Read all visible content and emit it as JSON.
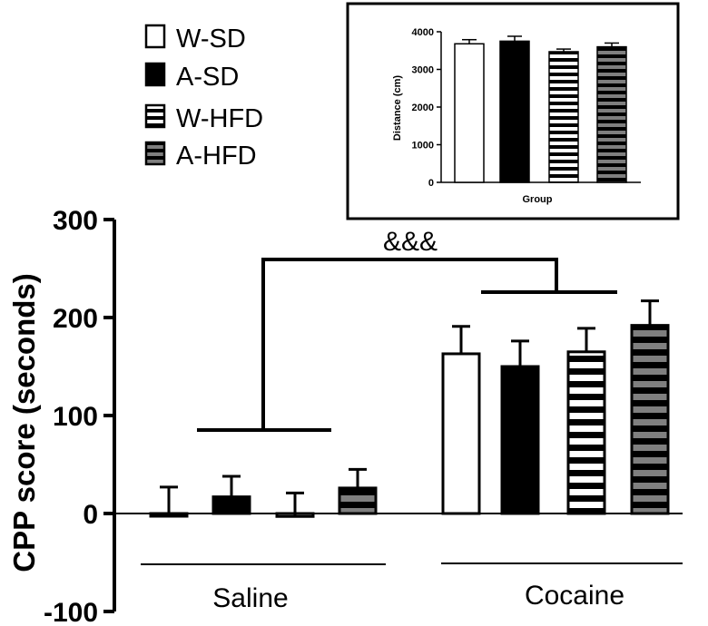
{
  "chart_data": [
    {
      "type": "bar",
      "ylabel": "CPP score (seconds)",
      "ylim": [
        -100,
        300
      ],
      "yticks": [
        "300",
        "200",
        "100",
        "0",
        "-100"
      ],
      "groups": [
        "Saline",
        "Cocaine"
      ],
      "significance_marker": "&&&",
      "series": [
        {
          "name": "W-SD",
          "values": [
            -1,
            163
          ],
          "errors": [
            28,
            28
          ],
          "pattern": "open"
        },
        {
          "name": "A-SD",
          "values": [
            17,
            150
          ],
          "errors": [
            21,
            26
          ],
          "pattern": "solid"
        },
        {
          "name": "W-HFD",
          "values": [
            -3,
            165
          ],
          "errors": [
            24,
            24
          ],
          "pattern": "white-stripes"
        },
        {
          "name": "A-HFD",
          "values": [
            26,
            192
          ],
          "errors": [
            19,
            25
          ],
          "pattern": "gray-stripes"
        }
      ],
      "legend_position": "top-left"
    },
    {
      "type": "bar",
      "title": "",
      "xlabel": "Group",
      "ylabel": "Distance (cm)",
      "ylim": [
        0,
        4000
      ],
      "yticks": [
        "4000",
        "3000",
        "2000",
        "1000",
        "0"
      ],
      "categories": [
        "W-SD",
        "A-SD",
        "W-HFD",
        "A-HFD"
      ],
      "values": [
        3680,
        3750,
        3470,
        3600
      ],
      "errors": [
        110,
        130,
        70,
        100
      ],
      "inset_position": "top-right"
    }
  ],
  "legend": {
    "items": [
      {
        "label": "W-SD"
      },
      {
        "label": "A-SD"
      },
      {
        "label": "W-HFD"
      },
      {
        "label": "A-HFD"
      }
    ]
  },
  "colors": {
    "black": "#000000",
    "white": "#ffffff",
    "gray": "#7f7f7f"
  }
}
